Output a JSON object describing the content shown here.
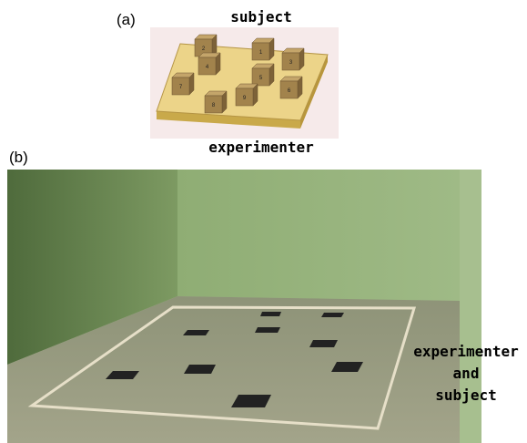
{
  "panel_a": {
    "label": "(a)",
    "top_text": "subject",
    "bottom_text": "experimenter",
    "cubes": [
      "2",
      "1",
      "3",
      "4",
      "5",
      "6",
      "7",
      "8",
      "9"
    ]
  },
  "panel_b": {
    "label": "(b)",
    "side_text": [
      "experimenter",
      "and",
      "subject"
    ]
  }
}
